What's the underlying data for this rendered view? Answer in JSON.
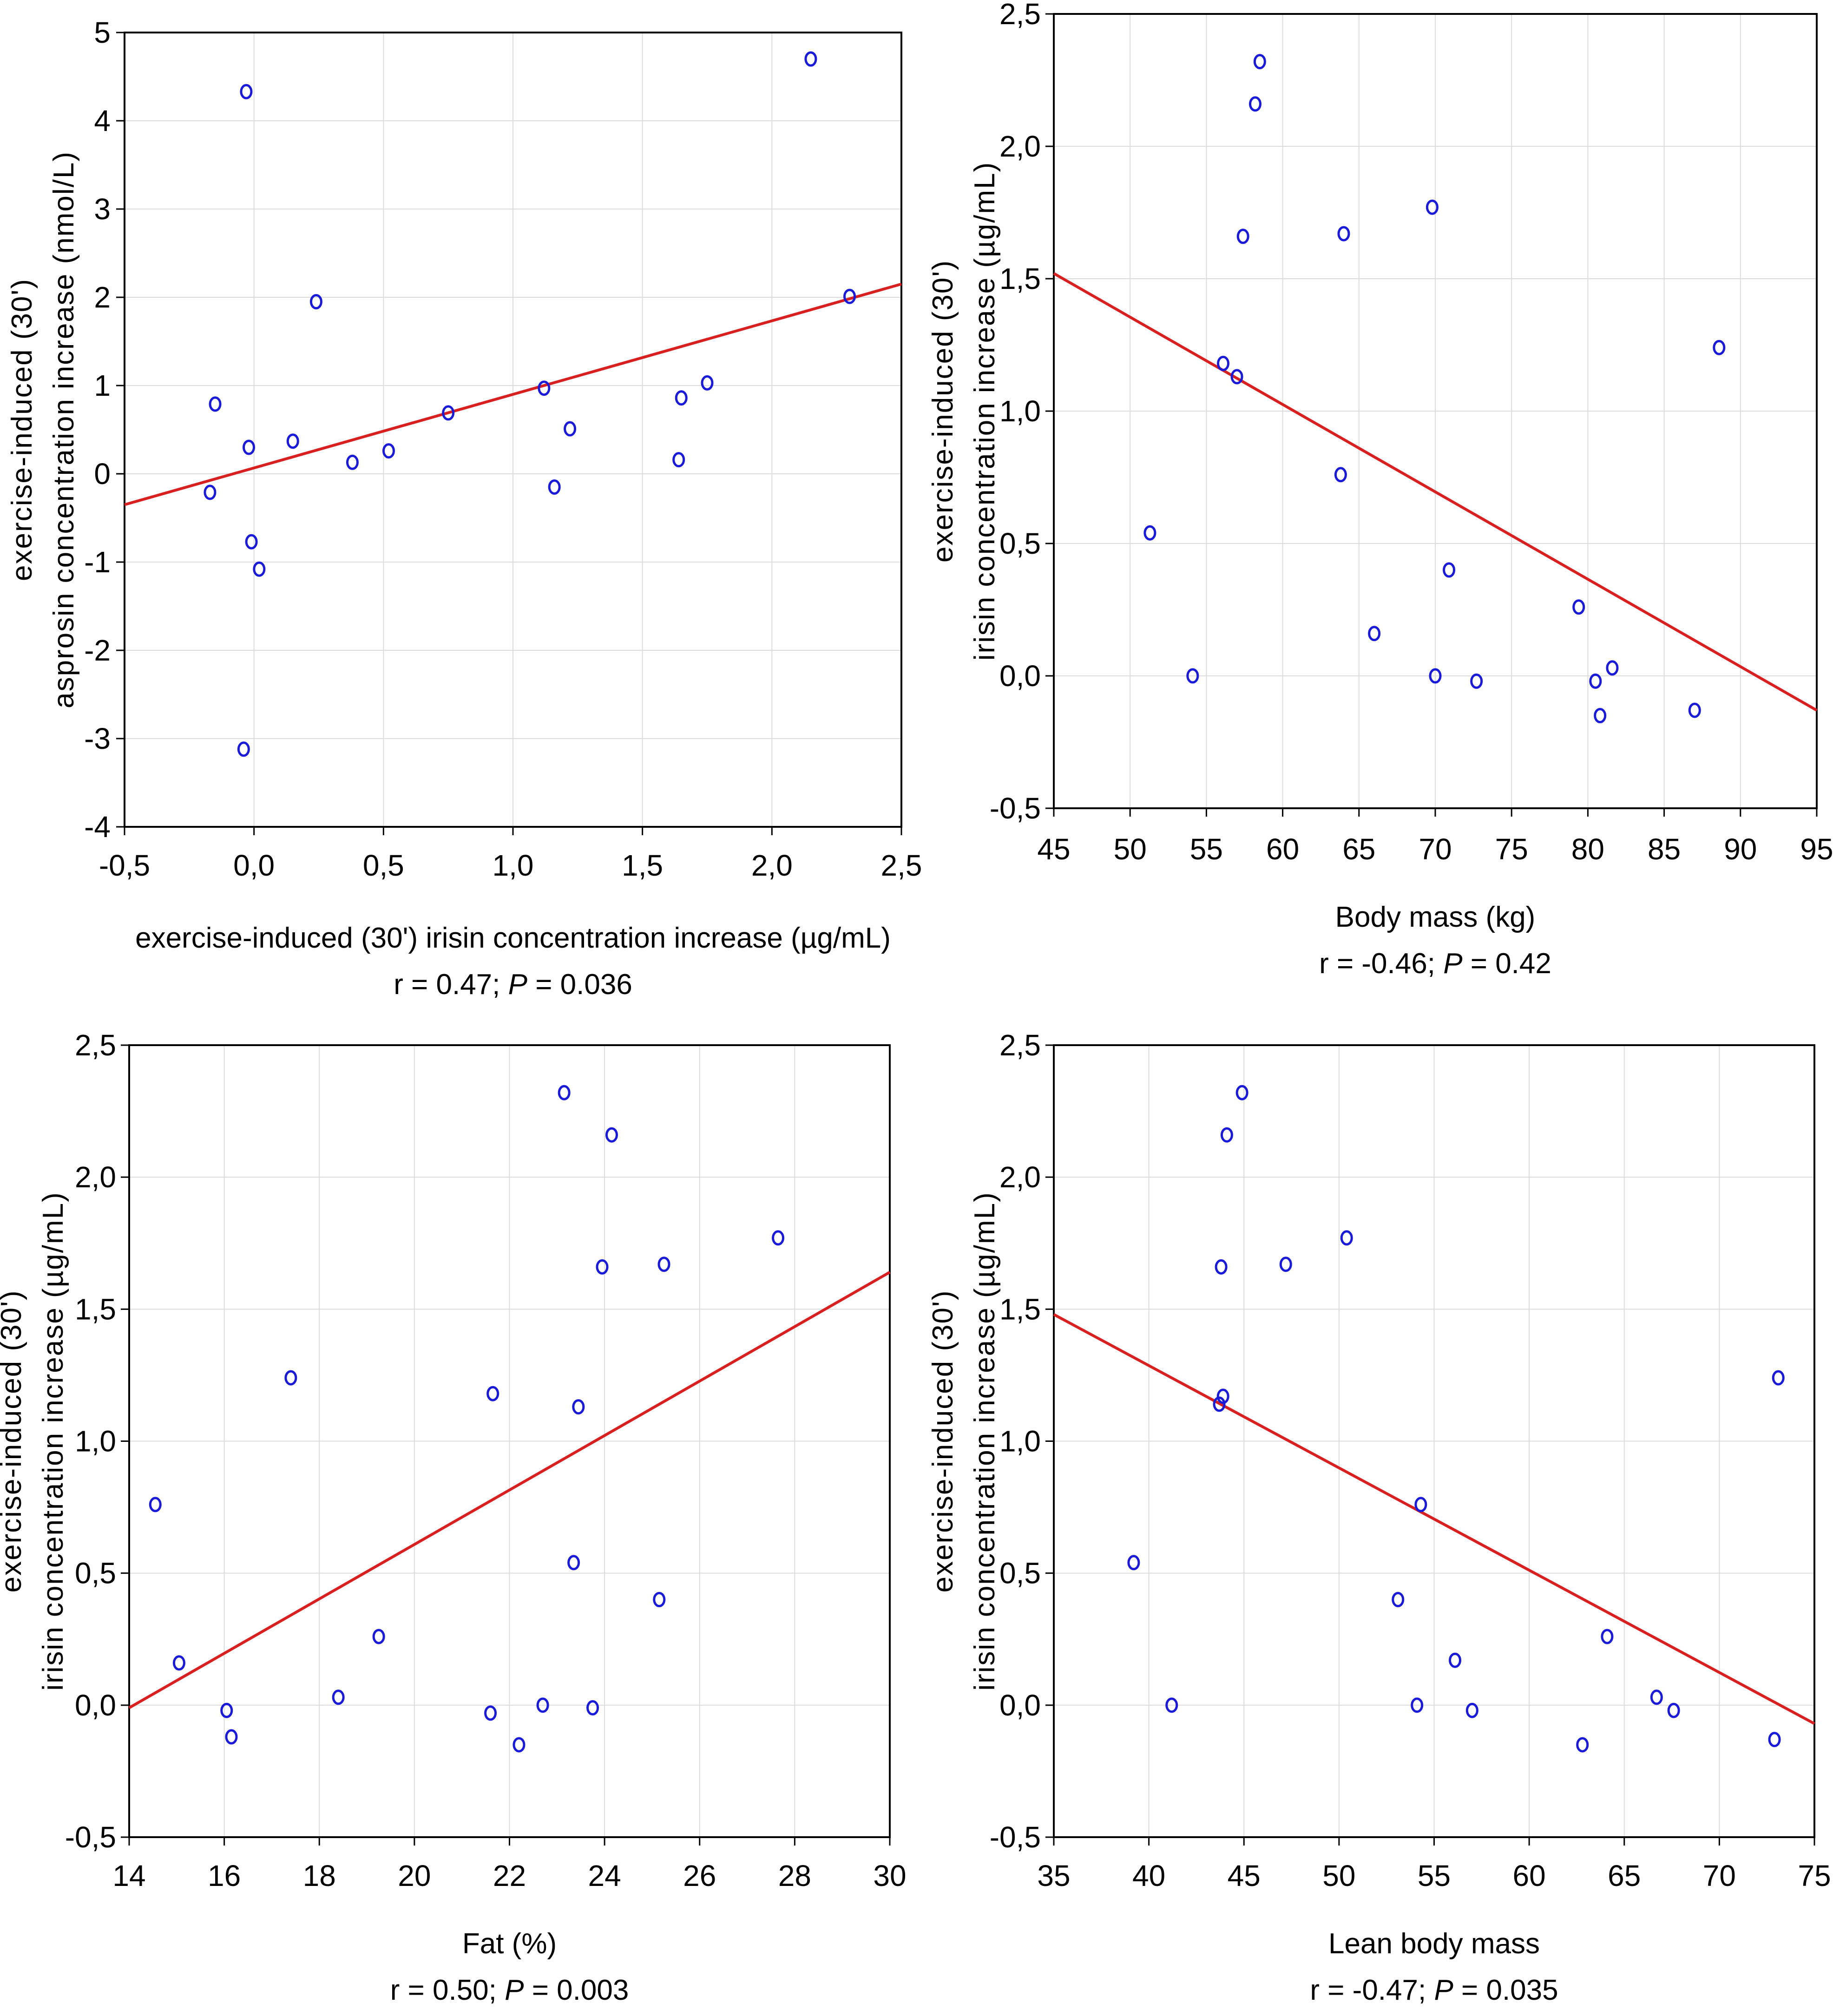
{
  "chart_data": [
    {
      "type": "scatter",
      "title": "",
      "xlabel": "exercise-induced (30') irisin concentration increase (µg/mL)",
      "ylabel_lines": [
        "exercise-induced (30')",
        "asprosin concentration increase  (nmol/L)"
      ],
      "stats": {
        "r_text": "r = 0.47; ",
        "p_symbol": "P",
        "p_text": " = 0.036"
      },
      "xlim": [
        -0.5,
        2.5
      ],
      "ylim": [
        -4,
        5
      ],
      "xticks": [
        -0.5,
        0.0,
        0.5,
        1.0,
        1.5,
        2.0,
        2.5
      ],
      "xtick_labels": [
        "-0,5",
        "0,0",
        "0,5",
        "1,0",
        "1,5",
        "2,0",
        "2,5"
      ],
      "yticks": [
        -4,
        -3,
        -2,
        -1,
        0,
        1,
        2,
        3,
        4,
        5
      ],
      "ytick_labels": [
        "-4",
        "-3",
        "-2",
        "-1",
        "0",
        "1",
        "2",
        "3",
        "4",
        "5"
      ],
      "grid": true,
      "points": [
        [
          -0.03,
          4.33
        ],
        [
          -0.04,
          -3.12
        ],
        [
          0.24,
          1.95
        ],
        [
          -0.15,
          0.79
        ],
        [
          -0.17,
          -0.21
        ],
        [
          -0.02,
          0.3
        ],
        [
          -0.01,
          -0.77
        ],
        [
          0.02,
          -1.08
        ],
        [
          0.15,
          0.37
        ],
        [
          0.38,
          0.13
        ],
        [
          0.52,
          0.26
        ],
        [
          0.75,
          0.69
        ],
        [
          1.12,
          0.97
        ],
        [
          1.16,
          -0.15
        ],
        [
          1.22,
          0.51
        ],
        [
          1.64,
          0.16
        ],
        [
          1.65,
          0.86
        ],
        [
          1.75,
          1.03
        ],
        [
          2.15,
          4.7
        ],
        [
          2.3,
          2.01
        ]
      ],
      "fit_line": [
        [
          -0.5,
          -0.35
        ],
        [
          2.5,
          2.15
        ]
      ]
    },
    {
      "type": "scatter",
      "title": "",
      "xlabel": "Body mass (kg)",
      "ylabel_lines": [
        "exercise-induced (30')",
        "irisin concentration increase  (µg/mL)"
      ],
      "stats": {
        "r_text": "r = -0.46; ",
        "p_symbol": "P",
        "p_text": " = 0.42"
      },
      "xlim": [
        45,
        95
      ],
      "ylim": [
        -0.5,
        2.5
      ],
      "xticks": [
        45,
        50,
        55,
        60,
        65,
        70,
        75,
        80,
        85,
        90,
        95
      ],
      "xtick_labels": [
        "45",
        "50",
        "55",
        "60",
        "65",
        "70",
        "75",
        "80",
        "85",
        "90",
        "95"
      ],
      "yticks": [
        -0.5,
        0.0,
        0.5,
        1.0,
        1.5,
        2.0,
        2.5
      ],
      "ytick_labels": [
        "-0,5",
        "0,0",
        "0,5",
        "1,0",
        "1,5",
        "2,0",
        "2,5"
      ],
      "grid": true,
      "points": [
        [
          58.5,
          2.32
        ],
        [
          58.2,
          2.16
        ],
        [
          57.4,
          1.66
        ],
        [
          64.0,
          1.67
        ],
        [
          69.8,
          1.77
        ],
        [
          88.6,
          1.24
        ],
        [
          56.1,
          1.18
        ],
        [
          57.0,
          1.13
        ],
        [
          63.8,
          0.76
        ],
        [
          51.3,
          0.54
        ],
        [
          70.9,
          0.4
        ],
        [
          79.4,
          0.26
        ],
        [
          66.0,
          0.16
        ],
        [
          54.1,
          0.0
        ],
        [
          70.0,
          0.0
        ],
        [
          72.7,
          -0.02
        ],
        [
          80.5,
          -0.02
        ],
        [
          81.6,
          0.03
        ],
        [
          80.8,
          -0.15
        ],
        [
          87.0,
          -0.13
        ]
      ],
      "fit_line": [
        [
          45,
          1.52
        ],
        [
          95,
          -0.13
        ]
      ]
    },
    {
      "type": "scatter",
      "title": "",
      "xlabel": "Fat (%)",
      "ylabel_lines": [
        "exercise-induced (30')",
        "irisin concentration increase  (µg/mL)"
      ],
      "stats": {
        "r_text": "r = 0.50; ",
        "p_symbol": "P",
        "p_text": " = 0.003"
      },
      "xlim": [
        14,
        30
      ],
      "ylim": [
        -0.5,
        2.5
      ],
      "xticks": [
        14,
        16,
        18,
        20,
        22,
        24,
        26,
        28,
        30
      ],
      "xtick_labels": [
        "14",
        "16",
        "18",
        "20",
        "22",
        "24",
        "26",
        "28",
        "30"
      ],
      "yticks": [
        -0.5,
        0.0,
        0.5,
        1.0,
        1.5,
        2.0,
        2.5
      ],
      "ytick_labels": [
        "-0,5",
        "0,0",
        "0,5",
        "1,0",
        "1,5",
        "2,0",
        "2,5"
      ],
      "grid": true,
      "points": [
        [
          23.15,
          2.32
        ],
        [
          24.15,
          2.16
        ],
        [
          23.95,
          1.66
        ],
        [
          25.25,
          1.67
        ],
        [
          27.65,
          1.77
        ],
        [
          17.4,
          1.24
        ],
        [
          21.65,
          1.18
        ],
        [
          23.45,
          1.13
        ],
        [
          14.55,
          0.76
        ],
        [
          23.35,
          0.54
        ],
        [
          25.15,
          0.4
        ],
        [
          19.25,
          0.26
        ],
        [
          15.05,
          0.16
        ],
        [
          18.4,
          0.03
        ],
        [
          16.05,
          -0.02
        ],
        [
          16.15,
          -0.12
        ],
        [
          21.6,
          -0.03
        ],
        [
          22.7,
          0.0
        ],
        [
          23.75,
          -0.01
        ],
        [
          22.2,
          -0.15
        ]
      ],
      "fit_line": [
        [
          14,
          -0.01
        ],
        [
          30,
          1.64
        ]
      ]
    },
    {
      "type": "scatter",
      "title": "",
      "xlabel": "Lean body mass",
      "ylabel_lines": [
        "exercise-induced (30')",
        "irisin concentration increase  (µg/mL)"
      ],
      "stats": {
        "r_text": "r = -0.47; ",
        "p_symbol": "P",
        "p_text": " = 0.035"
      },
      "xlim": [
        35,
        75
      ],
      "ylim": [
        -0.5,
        2.5
      ],
      "xticks": [
        35,
        40,
        45,
        50,
        55,
        60,
        65,
        70,
        75
      ],
      "xtick_labels": [
        "35",
        "40",
        "45",
        "50",
        "55",
        "60",
        "65",
        "70",
        "75"
      ],
      "yticks": [
        -0.5,
        0.0,
        0.5,
        1.0,
        1.5,
        2.0,
        2.5
      ],
      "ytick_labels": [
        "-0,5",
        "0,0",
        "0,5",
        "1,0",
        "1,5",
        "2,0",
        "2,5"
      ],
      "grid": true,
      "points": [
        [
          44.9,
          2.32
        ],
        [
          44.1,
          2.16
        ],
        [
          43.8,
          1.66
        ],
        [
          47.2,
          1.67
        ],
        [
          50.4,
          1.77
        ],
        [
          73.1,
          1.24
        ],
        [
          43.9,
          1.17
        ],
        [
          43.7,
          1.14
        ],
        [
          54.3,
          0.76
        ],
        [
          39.2,
          0.54
        ],
        [
          53.1,
          0.4
        ],
        [
          64.1,
          0.26
        ],
        [
          56.1,
          0.17
        ],
        [
          41.2,
          0.0
        ],
        [
          54.1,
          0.0
        ],
        [
          57.0,
          -0.02
        ],
        [
          62.8,
          -0.15
        ],
        [
          66.7,
          0.03
        ],
        [
          67.6,
          -0.02
        ],
        [
          72.9,
          -0.13
        ]
      ],
      "fit_line": [
        [
          35,
          1.48
        ],
        [
          75,
          -0.07
        ]
      ]
    }
  ]
}
